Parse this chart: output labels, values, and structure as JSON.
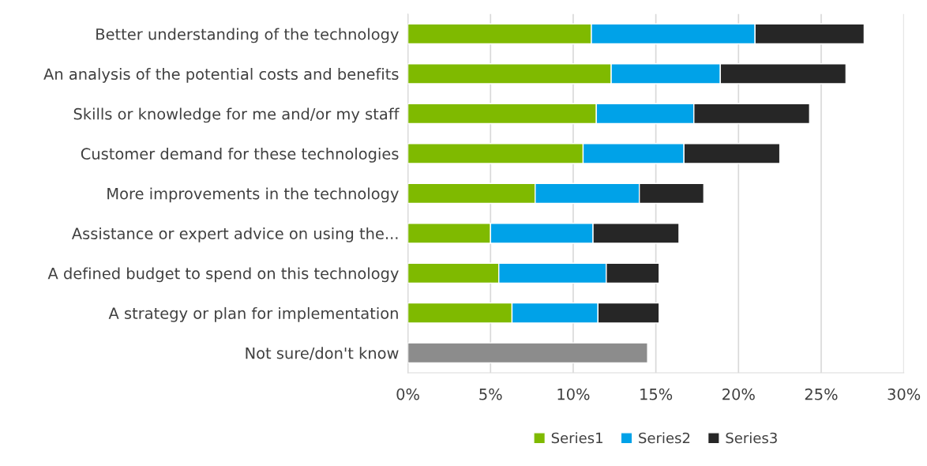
{
  "chart_data": {
    "type": "bar",
    "orientation": "horizontal",
    "stacked": true,
    "categories": [
      "Better understanding of the technology",
      "An analysis of the potential costs and benefits",
      "Skills or knowledge for me and/or my staff",
      "Customer demand for these technologies",
      "More improvements in the technology",
      "Assistance or expert advice on using the...",
      "A defined budget to spend on this technology",
      "A strategy or plan for implementation",
      "Not sure/don't know"
    ],
    "series": [
      {
        "name": "Series1",
        "color": "#7fba00",
        "colors": [
          "#7fba00",
          "#7fba00",
          "#7fba00",
          "#7fba00",
          "#7fba00",
          "#7fba00",
          "#7fba00",
          "#7fba00",
          "#8c8c8c"
        ],
        "values": [
          11.1,
          12.3,
          11.4,
          10.6,
          7.7,
          5.0,
          5.5,
          6.3,
          14.5
        ]
      },
      {
        "name": "Series2",
        "color": "#00a2e8",
        "values": [
          9.9,
          6.6,
          5.9,
          6.1,
          6.3,
          6.2,
          6.5,
          5.2,
          null
        ]
      },
      {
        "name": "Series3",
        "color": "#262626",
        "values": [
          6.6,
          7.6,
          7.0,
          5.8,
          3.9,
          5.2,
          3.2,
          3.7,
          null
        ]
      }
    ],
    "xlim": [
      0,
      30
    ],
    "xticks": [
      {
        "value": 0,
        "label": "0%"
      },
      {
        "value": 5,
        "label": "5%"
      },
      {
        "value": 10,
        "label": "10%"
      },
      {
        "value": 15,
        "label": "15%"
      },
      {
        "value": 20,
        "label": "20%"
      },
      {
        "value": 25,
        "label": "25%"
      },
      {
        "value": 30,
        "label": "30%"
      }
    ],
    "grid": "x",
    "legend": "bottom"
  }
}
